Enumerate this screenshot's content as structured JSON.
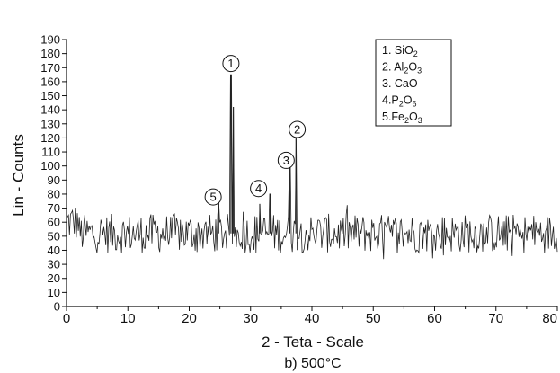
{
  "chart_data": {
    "type": "line",
    "xlabel": "2 - Teta - Scale",
    "ylabel": "Lin - Counts",
    "caption": "b) 500°C",
    "xlim": [
      0,
      80
    ],
    "ylim": [
      0,
      190
    ],
    "x_ticks": [
      0,
      10,
      20,
      30,
      40,
      50,
      60,
      70,
      80
    ],
    "x_tick_labels": [
      "0",
      "10",
      "20",
      "30",
      "40",
      "50",
      "60",
      "70",
      "80"
    ],
    "y_ticks": [
      0,
      10,
      20,
      30,
      40,
      50,
      60,
      70,
      80,
      90,
      100,
      110,
      120,
      130,
      140,
      150,
      160,
      170,
      180,
      190
    ],
    "y_tick_labels": [
      "0",
      "10",
      "20",
      "30",
      "40",
      "50",
      "60",
      "70",
      "80",
      "90",
      "100",
      "110",
      "120",
      "130",
      "140",
      "150",
      "160",
      "170",
      "180",
      "190"
    ],
    "grid": false,
    "baseline": {
      "mean": 52,
      "amplitude": 14
    },
    "series": [
      {
        "values": [
          {
            "x": 26.8,
            "y": 165
          },
          {
            "x": 27.2,
            "y": 142
          },
          {
            "x": 37.4,
            "y": 120
          },
          {
            "x": 36.4,
            "y": 100
          },
          {
            "x": 31.5,
            "y": 73
          },
          {
            "x": 24.8,
            "y": 75
          },
          {
            "x": 33.2,
            "y": 80
          }
        ]
      }
    ],
    "peak_markers": [
      {
        "label": "1",
        "x": 26.8,
        "y": 173
      },
      {
        "label": "2",
        "x": 37.6,
        "y": 126
      },
      {
        "label": "3",
        "x": 35.8,
        "y": 104
      },
      {
        "label": "4",
        "x": 31.3,
        "y": 84
      },
      {
        "label": "5",
        "x": 23.9,
        "y": 78
      }
    ],
    "legend": {
      "placement": "top-right",
      "entries": [
        {
          "prefix": "1. SiO",
          "subs": [
            "2"
          ],
          "parts": [
            "1. SiO",
            "2",
            ""
          ]
        },
        {
          "parts": [
            "2. Al",
            "2",
            "O",
            "3",
            ""
          ]
        },
        {
          "parts": [
            "3. CaO"
          ]
        },
        {
          "parts": [
            "4.P",
            "2",
            "O",
            "6",
            ""
          ]
        },
        {
          "parts": [
            "5.Fe",
            "2",
            "O",
            "3",
            ""
          ]
        }
      ]
    }
  }
}
